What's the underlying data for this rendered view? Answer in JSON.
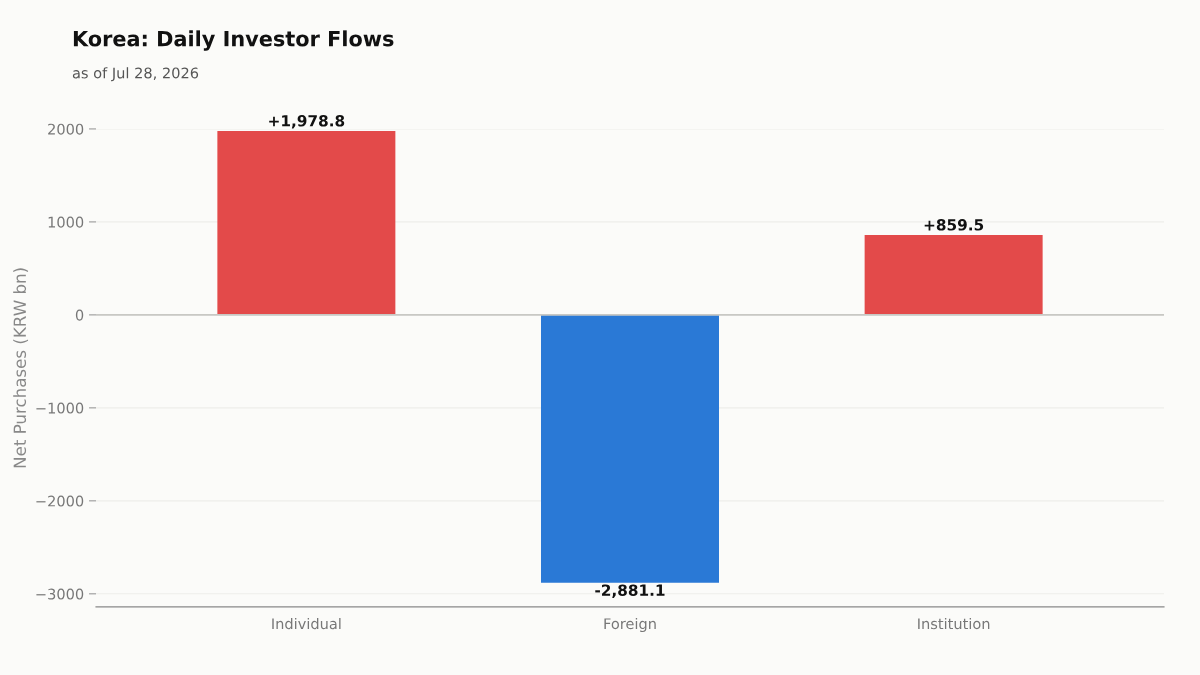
{
  "chart_data": {
    "type": "bar",
    "title": "Korea: Daily Investor Flows",
    "subtitle": "as of Jul 28, 2026",
    "ylabel": "Net Purchases (KRW bn)",
    "categories": [
      "Individual",
      "Foreign",
      "Institution"
    ],
    "values": [
      1978.8,
      -2881.1,
      859.5
    ],
    "colors": [
      "#e34a4a",
      "#2a79d6",
      "#e34a4a"
    ],
    "value_labels": [
      "+1,978.8",
      "-2,881.1",
      "+859.5"
    ],
    "ylim": [
      -3140,
      2000
    ],
    "yticks": [
      {
        "value": -3000,
        "label": "−3000"
      },
      {
        "value": -2000,
        "label": "−2000"
      },
      {
        "value": -1000,
        "label": "−1000"
      },
      0,
      1000,
      2000
    ],
    "ref_lines": [
      {
        "axis": "y",
        "value": 0,
        "color": "#c8c8c4"
      }
    ],
    "grid": "y"
  }
}
